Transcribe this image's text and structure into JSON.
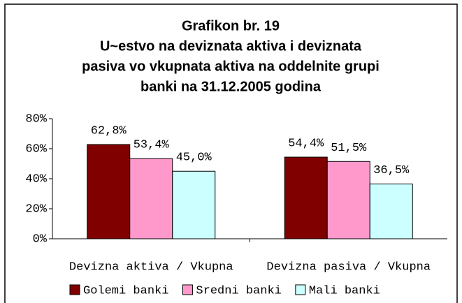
{
  "chart_data": {
    "type": "bar",
    "title": [
      "Grafikon br. 19",
      "U~estvo na deviznata aktiva i deviznata",
      "pasiva vo vkupnata aktiva na oddelnite grupi",
      "banki na 31.12.2005 godina"
    ],
    "categories": [
      "Devizna aktiva / Vkupna",
      "Devizna pasiva / Vkupna"
    ],
    "series": [
      {
        "name": "Golemi banki",
        "color": "#800000",
        "values": [
          62.8,
          54.4
        ],
        "value_labels": [
          "62,8%",
          "54,4%"
        ]
      },
      {
        "name": "Sredni banki",
        "color": "#ff99cc",
        "values": [
          53.4,
          51.5
        ],
        "value_labels": [
          "53,4%",
          "51,5%"
        ]
      },
      {
        "name": "Mali banki",
        "color": "#ccffff",
        "values": [
          45.0,
          36.5
        ],
        "value_labels": [
          "45,0%",
          "36,5%"
        ]
      }
    ],
    "ylim": [
      0,
      80
    ],
    "yticks": [
      {
        "value": 0,
        "label": "0%"
      },
      {
        "value": 20,
        "label": "20%"
      },
      {
        "value": 40,
        "label": "40%"
      },
      {
        "value": 60,
        "label": "60%"
      },
      {
        "value": 80,
        "label": "80%"
      }
    ],
    "legend": "bottom"
  }
}
